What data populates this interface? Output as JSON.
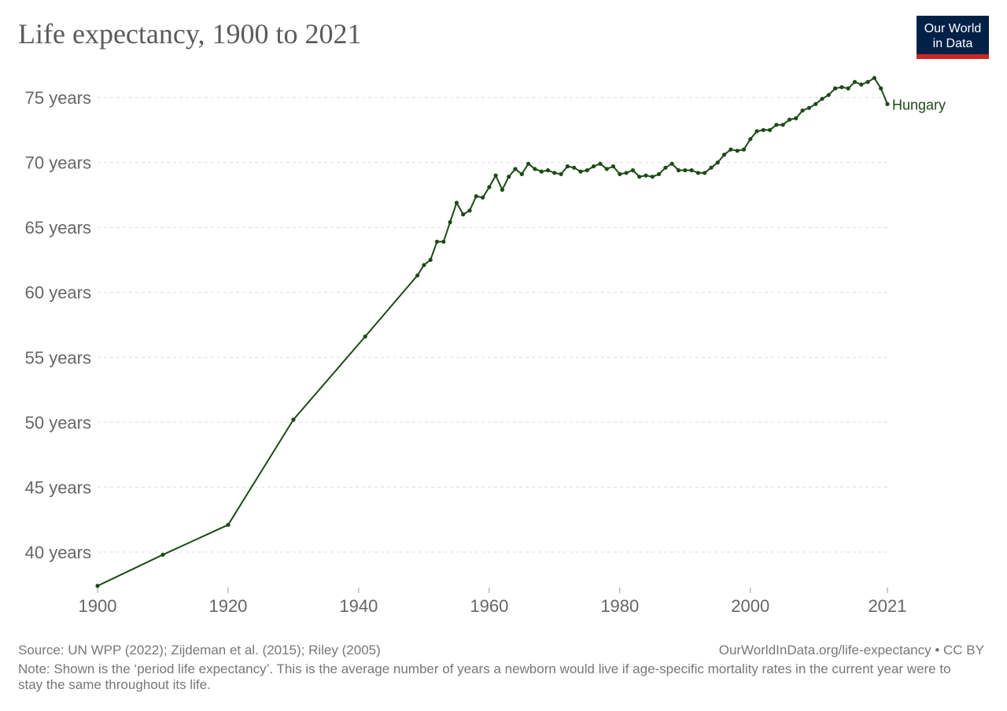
{
  "title": "Life expectancy, 1900 to 2021",
  "logo": {
    "line1": "Our World",
    "line2": "in Data"
  },
  "footer": {
    "source": "Source: UN WPP (2022); Zijdeman et al. (2015); Riley (2005)",
    "url": "OurWorldInData.org/life-expectancy • CC BY",
    "note": "Note: Shown is the ‘period life expectancy’. This is the average number of years a newborn would live if age-specific mortality rates in the current year were to stay the same throughout its life."
  },
  "chart_data": {
    "type": "line",
    "title": "Life expectancy, 1900 to 2021",
    "xlabel": "",
    "ylabel": "",
    "xlim": [
      1900,
      2021
    ],
    "ylim": [
      37.3,
      77
    ],
    "x_ticks": [
      1900,
      1920,
      1940,
      1960,
      1980,
      2000,
      2021
    ],
    "x_tick_labels": [
      "1900",
      "1920",
      "1940",
      "1960",
      "1980",
      "2000",
      "2021"
    ],
    "y_ticks": [
      40,
      45,
      50,
      55,
      60,
      65,
      70,
      75
    ],
    "y_tick_labels": [
      "40 years",
      "45 years",
      "50 years",
      "55 years",
      "60 years",
      "65 years",
      "70 years",
      "75 years"
    ],
    "grid": "horizontal dashed",
    "color": "#1d4a17",
    "series": [
      {
        "name": "Hungary",
        "points": [
          [
            1900,
            37.4
          ],
          [
            1910,
            39.8
          ],
          [
            1920,
            42.1
          ],
          [
            1930,
            50.2
          ],
          [
            1941,
            56.6
          ],
          [
            1949,
            61.3
          ],
          [
            1950,
            62.1
          ],
          [
            1951,
            62.5
          ],
          [
            1952,
            63.9
          ],
          [
            1953,
            63.9
          ],
          [
            1954,
            65.4
          ],
          [
            1955,
            66.9
          ],
          [
            1956,
            66.0
          ],
          [
            1957,
            66.3
          ],
          [
            1958,
            67.4
          ],
          [
            1959,
            67.3
          ],
          [
            1960,
            68.1
          ],
          [
            1961,
            69.0
          ],
          [
            1962,
            67.9
          ],
          [
            1963,
            68.9
          ],
          [
            1964,
            69.5
          ],
          [
            1965,
            69.1
          ],
          [
            1966,
            69.9
          ],
          [
            1967,
            69.5
          ],
          [
            1968,
            69.3
          ],
          [
            1969,
            69.4
          ],
          [
            1970,
            69.2
          ],
          [
            1971,
            69.1
          ],
          [
            1972,
            69.7
          ],
          [
            1973,
            69.6
          ],
          [
            1974,
            69.3
          ],
          [
            1975,
            69.4
          ],
          [
            1976,
            69.7
          ],
          [
            1977,
            69.9
          ],
          [
            1978,
            69.5
          ],
          [
            1979,
            69.7
          ],
          [
            1980,
            69.1
          ],
          [
            1981,
            69.2
          ],
          [
            1982,
            69.4
          ],
          [
            1983,
            68.9
          ],
          [
            1984,
            69.0
          ],
          [
            1985,
            68.9
          ],
          [
            1986,
            69.1
          ],
          [
            1987,
            69.6
          ],
          [
            1988,
            69.9
          ],
          [
            1989,
            69.4
          ],
          [
            1990,
            69.4
          ],
          [
            1991,
            69.4
          ],
          [
            1992,
            69.2
          ],
          [
            1993,
            69.2
          ],
          [
            1994,
            69.6
          ],
          [
            1995,
            70.0
          ],
          [
            1996,
            70.6
          ],
          [
            1997,
            71.0
          ],
          [
            1998,
            70.9
          ],
          [
            1999,
            71.0
          ],
          [
            2000,
            71.8
          ],
          [
            2001,
            72.4
          ],
          [
            2002,
            72.5
          ],
          [
            2003,
            72.5
          ],
          [
            2004,
            72.9
          ],
          [
            2005,
            72.9
          ],
          [
            2006,
            73.3
          ],
          [
            2007,
            73.4
          ],
          [
            2008,
            74.0
          ],
          [
            2009,
            74.2
          ],
          [
            2010,
            74.5
          ],
          [
            2011,
            74.9
          ],
          [
            2012,
            75.2
          ],
          [
            2013,
            75.7
          ],
          [
            2014,
            75.8
          ],
          [
            2015,
            75.7
          ],
          [
            2016,
            76.2
          ],
          [
            2017,
            76.0
          ],
          [
            2018,
            76.2
          ],
          [
            2019,
            76.5
          ],
          [
            2020,
            75.7
          ],
          [
            2021,
            74.5
          ]
        ]
      }
    ]
  }
}
